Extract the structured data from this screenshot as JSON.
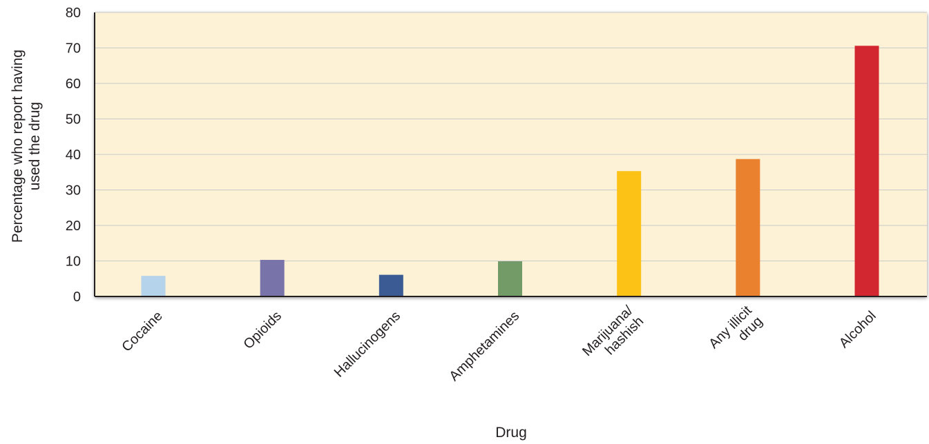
{
  "chart_data": {
    "type": "bar",
    "categories": [
      [
        "Cocaine"
      ],
      [
        "Opioids"
      ],
      [
        "Hallucinogens"
      ],
      [
        "Amphetamines"
      ],
      [
        "Marijuana/",
        "hashish"
      ],
      [
        "Any illicit",
        "drug"
      ],
      [
        "Alcohol"
      ]
    ],
    "values": [
      5.8,
      10.3,
      6.1,
      9.9,
      35.3,
      38.7,
      70.6
    ],
    "colors": [
      "#b5d3ea",
      "#7874aa",
      "#3b5b95",
      "#729b67",
      "#fdc216",
      "#ea812f",
      "#d22630"
    ],
    "title": "",
    "xlabel": "Drug",
    "ylabel": [
      "Percentage who report having",
      "used the drug"
    ],
    "ylim": [
      0,
      80
    ],
    "yticks": [
      0,
      10,
      20,
      30,
      40,
      50,
      60,
      70,
      80
    ],
    "grid": true,
    "plot_background": "#fdf1d6",
    "grid_color": "#c9c9c9",
    "axis_color": "#231f20"
  }
}
